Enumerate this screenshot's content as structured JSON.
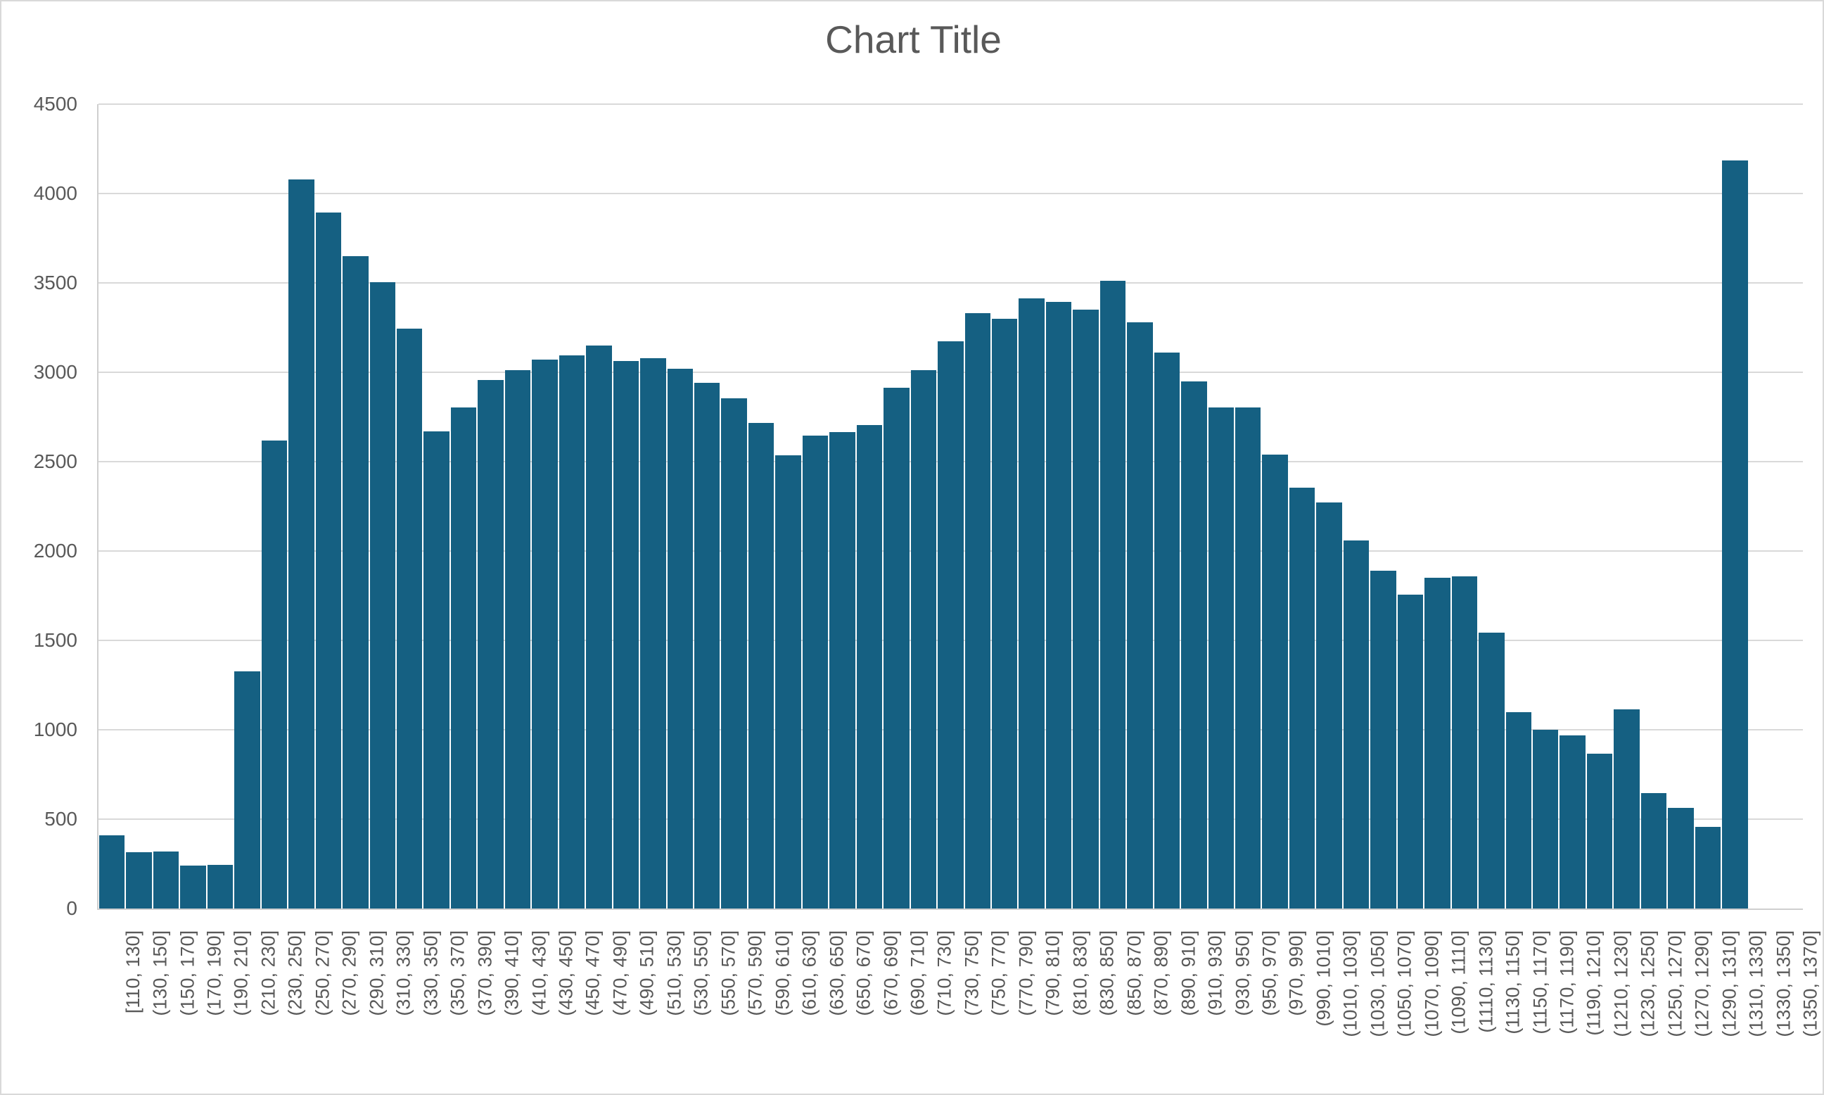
{
  "title": "Chart Title",
  "colors": {
    "bar_fill": "#156082",
    "gridline": "#d9d9d9",
    "axis_line": "#cfcfcf",
    "text": "#595959",
    "background": "#ffffff"
  },
  "chart_data": {
    "type": "bar",
    "title": "Chart Title",
    "xlabel": "",
    "ylabel": "",
    "ylim": [
      0,
      4500
    ],
    "ytick_interval": 500,
    "yticks": [
      0,
      500,
      1000,
      1500,
      2000,
      2500,
      3000,
      3500,
      4000,
      4500
    ],
    "grid": true,
    "legend": false,
    "bar_color": "#156082",
    "categories": [
      "[110, 130]",
      "(130, 150]",
      "(150, 170]",
      "(170, 190]",
      "(190, 210]",
      "(210, 230]",
      "(230, 250]",
      "(250, 270]",
      "(270, 290]",
      "(290, 310]",
      "(310, 330]",
      "(330, 350]",
      "(350, 370]",
      "(370, 390]",
      "(390, 410]",
      "(410, 430]",
      "(430, 450]",
      "(450, 470]",
      "(470, 490]",
      "(490, 510]",
      "(510, 530]",
      "(530, 550]",
      "(550, 570]",
      "(570, 590]",
      "(590, 610]",
      "(610, 630]",
      "(630, 650]",
      "(650, 670]",
      "(670, 690]",
      "(690, 710]",
      "(710, 730]",
      "(730, 750]",
      "(750, 770]",
      "(770, 790]",
      "(790, 810]",
      "(810, 830]",
      "(830, 850]",
      "(850, 870]",
      "(870, 890]",
      "(890, 910]",
      "(910, 930]",
      "(930, 950]",
      "(950, 970]",
      "(970, 990]",
      "(990, 1010]",
      "(1010, 1030]",
      "(1030, 1050]",
      "(1050, 1070]",
      "(1070, 1090]",
      "(1090, 1110]",
      "(1110, 1130]",
      "(1130, 1150]",
      "(1150, 1170]",
      "(1170, 1190]",
      "(1190, 1210]",
      "(1210, 1230]",
      "(1230, 1250]",
      "(1250, 1270]",
      "(1270, 1290]",
      "(1290, 1310]",
      "(1310, 1330]",
      "(1330, 1350]",
      "(1350, 1370]"
    ],
    "values": [
      410,
      315,
      320,
      240,
      245,
      1325,
      2620,
      4080,
      3895,
      3650,
      3505,
      3245,
      2670,
      2805,
      2955,
      3010,
      3070,
      3095,
      3150,
      3065,
      3080,
      3020,
      2940,
      2855,
      2715,
      2535,
      2645,
      2665,
      2705,
      2915,
      3010,
      3175,
      3330,
      3300,
      3415,
      3395,
      3350,
      3510,
      3280,
      3110,
      2950,
      2805,
      2805,
      2540,
      2355,
      2270,
      2060,
      1890,
      1755,
      1850,
      1860,
      1545,
      1100,
      1000,
      970,
      865,
      1115,
      645,
      565,
      455,
      4185,
      0,
      0
    ]
  }
}
